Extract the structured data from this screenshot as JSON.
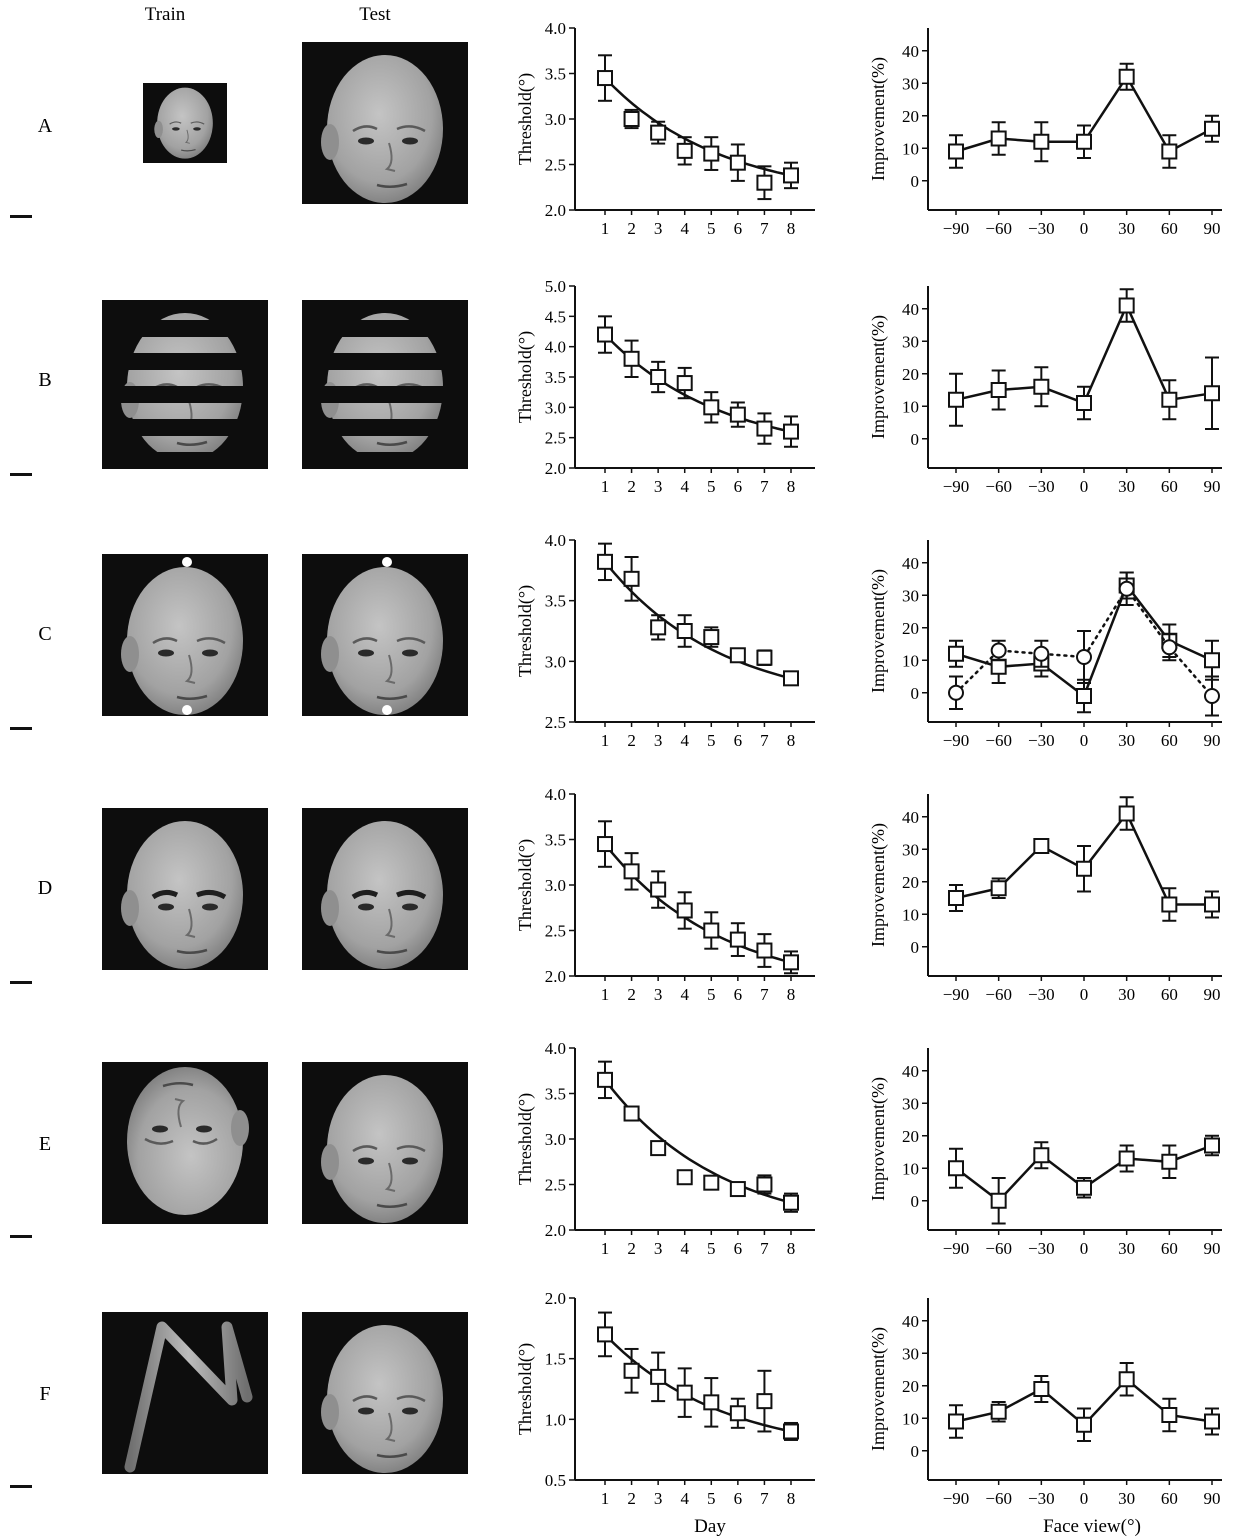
{
  "figure": {
    "column_titles": [
      "Train",
      "Test"
    ],
    "row_labels": [
      "A",
      "B",
      "C",
      "D",
      "E",
      "F"
    ],
    "threshold_xlabel": "Day",
    "improvement_xlabel": "Face view(°)",
    "threshold_ylabel": "Threshold(°)",
    "improvement_ylabel": "Improvement(%)"
  },
  "stimuli": [
    {
      "row": "A",
      "train": "small bald face, three-quarter view",
      "test": "large bald face, three-quarter view"
    },
    {
      "row": "B",
      "train": "face occluded by horizontal black stripes",
      "test": "face occluded by horizontal black stripes"
    },
    {
      "row": "C",
      "train": "bald face with two white dots",
      "test": "bald face with two white dots"
    },
    {
      "row": "D",
      "train": "bald face with dark eyebrows",
      "test": "bald face with dark eyebrows"
    },
    {
      "row": "E",
      "train": "inverted bald face",
      "test": "upright bald face"
    },
    {
      "row": "F",
      "train": "wire-like N shaped object",
      "test": "upright bald face"
    }
  ],
  "colors": {
    "line": "#111111",
    "photo_bg": "#0d0d0d",
    "skin": "#a9a9a9"
  },
  "chart_data": [
    {
      "type": "line",
      "panel": "A-threshold",
      "xlabel": "",
      "ylabel": "Threshold(°)",
      "ylim": [
        2.0,
        4.0
      ],
      "yticks": [
        "2.0",
        "2.5",
        "3.0",
        "3.5",
        "4.0"
      ],
      "x": [
        1,
        2,
        3,
        4,
        5,
        6,
        7,
        8
      ],
      "series": [
        {
          "values": [
            3.45,
            3.0,
            2.85,
            2.65,
            2.62,
            2.52,
            2.3,
            2.38
          ],
          "errors": [
            0.25,
            0.1,
            0.12,
            0.15,
            0.18,
            0.2,
            0.18,
            0.14
          ]
        }
      ]
    },
    {
      "type": "line",
      "panel": "A-improvement",
      "xlabel": "",
      "ylabel": "Improvement(%)",
      "ylim": [
        -9,
        47
      ],
      "yticks": [
        "0",
        "10",
        "20",
        "30",
        "40"
      ],
      "x": [
        -90,
        -60,
        -30,
        0,
        30,
        60,
        90
      ],
      "series": [
        {
          "values": [
            9,
            13,
            12,
            12,
            32,
            9,
            16
          ],
          "errors": [
            5,
            5,
            6,
            5,
            4,
            5,
            4
          ]
        }
      ]
    },
    {
      "type": "line",
      "panel": "B-threshold",
      "xlabel": "",
      "ylabel": "Threshold(°)",
      "ylim": [
        2.0,
        5.0
      ],
      "yticks": [
        "2.0",
        "2.5",
        "3.0",
        "3.5",
        "4.0",
        "4.5",
        "5.0"
      ],
      "x": [
        1,
        2,
        3,
        4,
        5,
        6,
        7,
        8
      ],
      "series": [
        {
          "values": [
            4.2,
            3.8,
            3.5,
            3.4,
            3.0,
            2.88,
            2.65,
            2.6
          ],
          "errors": [
            0.3,
            0.3,
            0.25,
            0.25,
            0.25,
            0.2,
            0.25,
            0.25
          ]
        }
      ]
    },
    {
      "type": "line",
      "panel": "B-improvement",
      "xlabel": "",
      "ylabel": "Improvement(%)",
      "ylim": [
        -9,
        47
      ],
      "yticks": [
        "0",
        "10",
        "20",
        "30",
        "40"
      ],
      "x": [
        -90,
        -60,
        -30,
        0,
        30,
        60,
        90
      ],
      "series": [
        {
          "values": [
            12,
            15,
            16,
            11,
            41,
            12,
            14
          ],
          "errors": [
            8,
            6,
            6,
            5,
            5,
            6,
            11
          ]
        }
      ]
    },
    {
      "type": "line",
      "panel": "C-threshold",
      "xlabel": "",
      "ylabel": "Threshold(°)",
      "ylim": [
        2.5,
        4.0
      ],
      "yticks": [
        "2.5",
        "3.0",
        "3.5",
        "4.0"
      ],
      "x": [
        1,
        2,
        3,
        4,
        5,
        6,
        7,
        8
      ],
      "series": [
        {
          "values": [
            3.82,
            3.68,
            3.28,
            3.25,
            3.2,
            3.05,
            3.03,
            2.86
          ],
          "errors": [
            0.15,
            0.18,
            0.1,
            0.13,
            0.08,
            0.05,
            0.06,
            0.05
          ]
        }
      ]
    },
    {
      "type": "line",
      "panel": "C-improvement",
      "xlabel": "",
      "ylabel": "Improvement(%)",
      "ylim": [
        -9,
        47
      ],
      "yticks": [
        "0",
        "10",
        "20",
        "30",
        "40"
      ],
      "x": [
        -90,
        -60,
        -30,
        0,
        30,
        60,
        90
      ],
      "series": [
        {
          "values": [
            12,
            8,
            9,
            -1,
            33,
            16,
            10
          ],
          "errors": [
            4,
            5,
            4,
            5,
            4,
            5,
            6
          ]
        },
        {
          "values": [
            0,
            13,
            12,
            11,
            32,
            14,
            -1
          ],
          "errors": [
            5,
            3,
            4,
            8,
            5,
            4,
            6
          ],
          "dotted": true,
          "marker": "circle"
        }
      ]
    },
    {
      "type": "line",
      "panel": "D-threshold",
      "xlabel": "",
      "ylabel": "Threshold(°)",
      "ylim": [
        2.0,
        4.0
      ],
      "yticks": [
        "2.0",
        "2.5",
        "3.0",
        "3.5",
        "4.0"
      ],
      "x": [
        1,
        2,
        3,
        4,
        5,
        6,
        7,
        8
      ],
      "series": [
        {
          "values": [
            3.45,
            3.15,
            2.95,
            2.72,
            2.5,
            2.4,
            2.28,
            2.15
          ],
          "errors": [
            0.25,
            0.2,
            0.2,
            0.2,
            0.2,
            0.18,
            0.18,
            0.12
          ]
        }
      ]
    },
    {
      "type": "line",
      "panel": "D-improvement",
      "xlabel": "",
      "ylabel": "Improvement(%)",
      "ylim": [
        -9,
        47
      ],
      "yticks": [
        "0",
        "10",
        "20",
        "30",
        "40"
      ],
      "x": [
        -90,
        -60,
        -30,
        0,
        30,
        60,
        90
      ],
      "series": [
        {
          "values": [
            15,
            18,
            31,
            24,
            41,
            13,
            13
          ],
          "errors": [
            4,
            3,
            2,
            7,
            5,
            5,
            4
          ]
        }
      ]
    },
    {
      "type": "line",
      "panel": "E-threshold",
      "xlabel": "",
      "ylabel": "Threshold(°)",
      "ylim": [
        2.0,
        4.0
      ],
      "yticks": [
        "2.0",
        "2.5",
        "3.0",
        "3.5",
        "4.0"
      ],
      "x": [
        1,
        2,
        3,
        4,
        5,
        6,
        7,
        8
      ],
      "series": [
        {
          "values": [
            3.65,
            3.28,
            2.9,
            2.58,
            2.52,
            2.45,
            2.5,
            2.3
          ],
          "errors": [
            0.2,
            0.05,
            0.05,
            0.06,
            0.05,
            0.04,
            0.1,
            0.1
          ]
        }
      ]
    },
    {
      "type": "line",
      "panel": "E-improvement",
      "xlabel": "",
      "ylabel": "Improvement(%)",
      "ylim": [
        -9,
        47
      ],
      "yticks": [
        "0",
        "10",
        "20",
        "30",
        "40"
      ],
      "x": [
        -90,
        -60,
        -30,
        0,
        30,
        60,
        90
      ],
      "series": [
        {
          "values": [
            10,
            0,
            14,
            4,
            13,
            12,
            17
          ],
          "errors": [
            6,
            7,
            4,
            3,
            4,
            5,
            3
          ]
        }
      ]
    },
    {
      "type": "line",
      "panel": "F-threshold",
      "xlabel": "Day",
      "ylabel": "Threshold(°)",
      "ylim": [
        0.5,
        2.0
      ],
      "yticks": [
        "0.5",
        "1.0",
        "1.5",
        "2.0"
      ],
      "x": [
        1,
        2,
        3,
        4,
        5,
        6,
        7,
        8
      ],
      "series": [
        {
          "values": [
            1.7,
            1.4,
            1.35,
            1.22,
            1.14,
            1.05,
            1.15,
            0.9
          ],
          "errors": [
            0.18,
            0.18,
            0.2,
            0.2,
            0.2,
            0.12,
            0.25,
            0.07
          ]
        }
      ]
    },
    {
      "type": "line",
      "panel": "F-improvement",
      "xlabel": "Face view(°)",
      "ylabel": "Improvement(%)",
      "ylim": [
        -9,
        47
      ],
      "yticks": [
        "0",
        "10",
        "20",
        "30",
        "40"
      ],
      "x": [
        -90,
        -60,
        -30,
        0,
        30,
        60,
        90
      ],
      "series": [
        {
          "values": [
            9,
            12,
            19,
            8,
            22,
            11,
            9
          ],
          "errors": [
            5,
            3,
            4,
            5,
            5,
            5,
            4
          ]
        }
      ]
    }
  ]
}
